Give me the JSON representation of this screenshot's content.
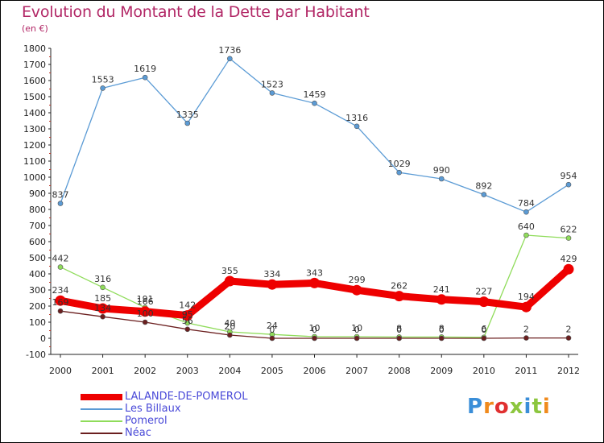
{
  "header": {
    "title": "Evolution du Montant de la Dette par Habitant",
    "unit": "(en €)"
  },
  "logo": {
    "text": "Proxiti",
    "colors": [
      "#3a8ed8",
      "#f08a1c",
      "#e03030",
      "#8cc63e",
      "#3a8ed8",
      "#8cc63e",
      "#f08a1c"
    ]
  },
  "chart_data": {
    "type": "line",
    "x": [
      "2000",
      "2001",
      "2002",
      "2003",
      "2004",
      "2005",
      "2006",
      "2007",
      "2008",
      "2009",
      "2010",
      "2011",
      "2012"
    ],
    "ylim": [
      -100,
      1800
    ],
    "yticks": [
      -100,
      0,
      100,
      200,
      300,
      400,
      500,
      600,
      700,
      800,
      900,
      1000,
      1100,
      1200,
      1300,
      1400,
      1500,
      1600,
      1700,
      1800
    ],
    "grid": false,
    "legend": "bottom-left",
    "series": [
      {
        "name": "LALANDE-DE-POMEROL",
        "color": "#ee0000",
        "values": [
          234,
          185,
          166,
          142,
          355,
          334,
          343,
          299,
          262,
          241,
          227,
          194,
          429
        ]
      },
      {
        "name": "Les Billaux",
        "color": "#5b9bd5",
        "values": [
          837,
          1553,
          1619,
          1335,
          1736,
          1523,
          1459,
          1316,
          1029,
          990,
          892,
          784,
          954
        ]
      },
      {
        "name": "Pomerol",
        "color": "#8fdc5a",
        "values": [
          442,
          316,
          191,
          95,
          40,
          24,
          10,
          10,
          8,
          8,
          6,
          640,
          622
        ]
      },
      {
        "name": "Néac",
        "color": "#6b1f1f",
        "values": [
          169,
          134,
          100,
          56,
          20,
          0,
          0,
          0,
          0,
          0,
          0,
          2,
          2
        ]
      }
    ]
  }
}
